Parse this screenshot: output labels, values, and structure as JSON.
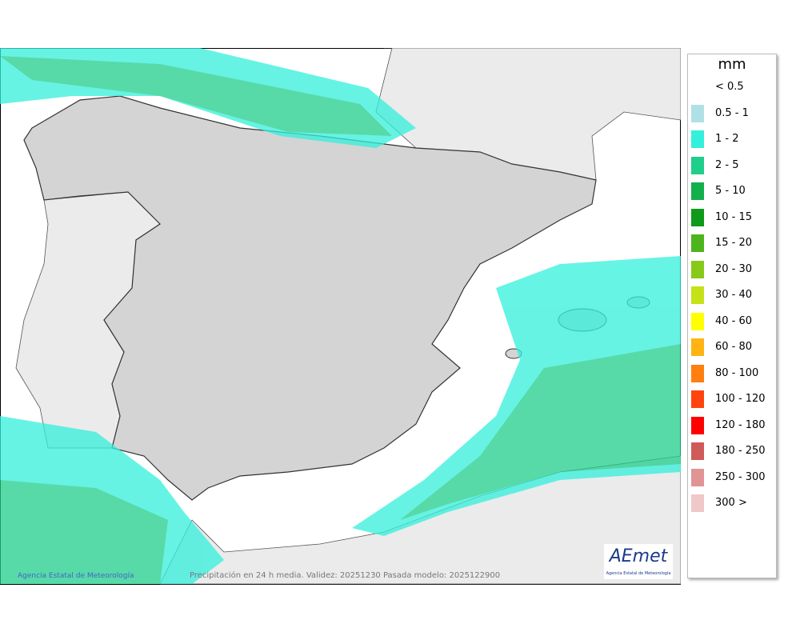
{
  "map": {
    "credit": "Agencia Estatal de Meteorología",
    "caption": "Precipitación en 24 h media. Validez: 20251230 Pasada modelo: 2025122900",
    "logo": {
      "name": "AEmet",
      "subtitle": "Agencia Estatal de Meteorología"
    }
  },
  "legend": {
    "title": "mm",
    "items": [
      {
        "label": "< 0.5"
      },
      {
        "label": "0.5 - 1",
        "color": "#b0e0e6"
      },
      {
        "label": "1 - 2",
        "color": "#33f0dc"
      },
      {
        "label": "2 - 5",
        "color": "#1fce8a"
      },
      {
        "label": "5 - 10",
        "color": "#12b04c"
      },
      {
        "label": "10 - 15",
        "color": "#0e9a1a"
      },
      {
        "label": "15 - 20",
        "color": "#4cb51c"
      },
      {
        "label": "20 - 30",
        "color": "#86c918"
      },
      {
        "label": "30 - 40",
        "color": "#c4e216"
      },
      {
        "label": "40 - 60",
        "color": "#ffff00"
      },
      {
        "label": "60 - 80",
        "color": "#ffb414"
      },
      {
        "label": "80 - 100",
        "color": "#ff7e10"
      },
      {
        "label": "100 - 120",
        "color": "#ff4410"
      },
      {
        "label": "120 - 180",
        "color": "#ff0000"
      },
      {
        "label": "180 - 250",
        "color": "#d05a5a"
      },
      {
        "label": "250 - 300",
        "color": "#e09494"
      },
      {
        "label": "300 >",
        "color": "#f0c8c8"
      }
    ]
  }
}
